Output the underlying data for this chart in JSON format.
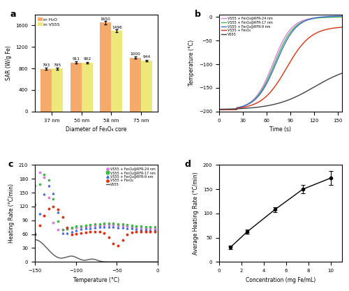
{
  "panel_a": {
    "categories": [
      "37 nm",
      "50 nm",
      "58 nm",
      "75 nm"
    ],
    "h2o_values": [
      793,
      911,
      1650,
      1000
    ],
    "vs55_values": [
      795,
      902,
      1496,
      944
    ],
    "h2o_errors": [
      20,
      18,
      30,
      18
    ],
    "vs55_errors": [
      22,
      15,
      25,
      15
    ],
    "h2o_color": "#F5A96A",
    "vs55_color": "#EEE87A",
    "ylabel": "SAR (W/g Fe)",
    "xlabel": "Diameter of Fe₃O₄ core",
    "ylim": [
      0,
      1800
    ],
    "yticks": [
      0,
      400,
      800,
      1200,
      1600
    ],
    "label_h2o": "in H₂O",
    "label_vs55": "in VS55"
  },
  "panel_b": {
    "ylabel": "Temperature (°C)",
    "xlabel": "Time (s)",
    "xlim": [
      0,
      155
    ],
    "ylim": [
      -200,
      5
    ],
    "yticks": [
      0,
      -50,
      -100,
      -150,
      -200
    ],
    "xticks": [
      0,
      30,
      60,
      90,
      120,
      150
    ],
    "colors": {
      "rfr24": "#E07BE0",
      "rfr17": "#3CB843",
      "rfr9": "#4169E1",
      "fe3o4": "#E03010",
      "vs55": "#404040"
    },
    "labels": {
      "rfr24": "VS55 + Fe₃O₄@RFR-24 nm",
      "rfr17": "VS55 + Fe₃O₄@RFR-17 nm",
      "rfr9": "VS55 + Fe₃O₄@RFR-9 nm",
      "fe3o4": "VS55 + Fe₃O₄",
      "vs55": "VS55"
    }
  },
  "panel_c": {
    "ylabel": "Heating Rate (°C/min)",
    "xlabel": "Temperature (°C)",
    "xlim": [
      -150,
      0
    ],
    "ylim": [
      0,
      210
    ],
    "yticks": [
      0,
      30,
      60,
      90,
      120,
      150,
      180,
      210
    ],
    "xticks": [
      -150,
      -100,
      -50,
      0
    ],
    "colors": {
      "rfr24": "#E07BE0",
      "rfr17": "#3CB843",
      "rfr9": "#4169E1",
      "fe3o4": "#E03010",
      "vs55": "#555555"
    },
    "labels": {
      "rfr24": "VS55 + Fe₃O₄@RFR-24 nm",
      "rfr17": "VS55 + Fe₃O₄@RFR-17 nm",
      "rfr9": "VS55 + Fe₃O₄@RFR-9 nm",
      "fe3o4": "VS55 + Fe₃O₄",
      "vs55": "VS55"
    }
  },
  "panel_d": {
    "concentrations": [
      1,
      2.5,
      5,
      7.5,
      10
    ],
    "avg_heating": [
      30,
      62,
      108,
      150,
      173
    ],
    "errors": [
      3,
      4,
      5,
      8,
      15
    ],
    "ylabel": "Average Heating Rate (°C/min)",
    "xlabel": "Concentration (mg Fe/mL)",
    "xlim": [
      0,
      11
    ],
    "ylim": [
      0,
      200
    ],
    "yticks": [
      0,
      50,
      100,
      150,
      200
    ],
    "xticks": [
      0,
      2,
      4,
      6,
      8,
      10
    ]
  }
}
